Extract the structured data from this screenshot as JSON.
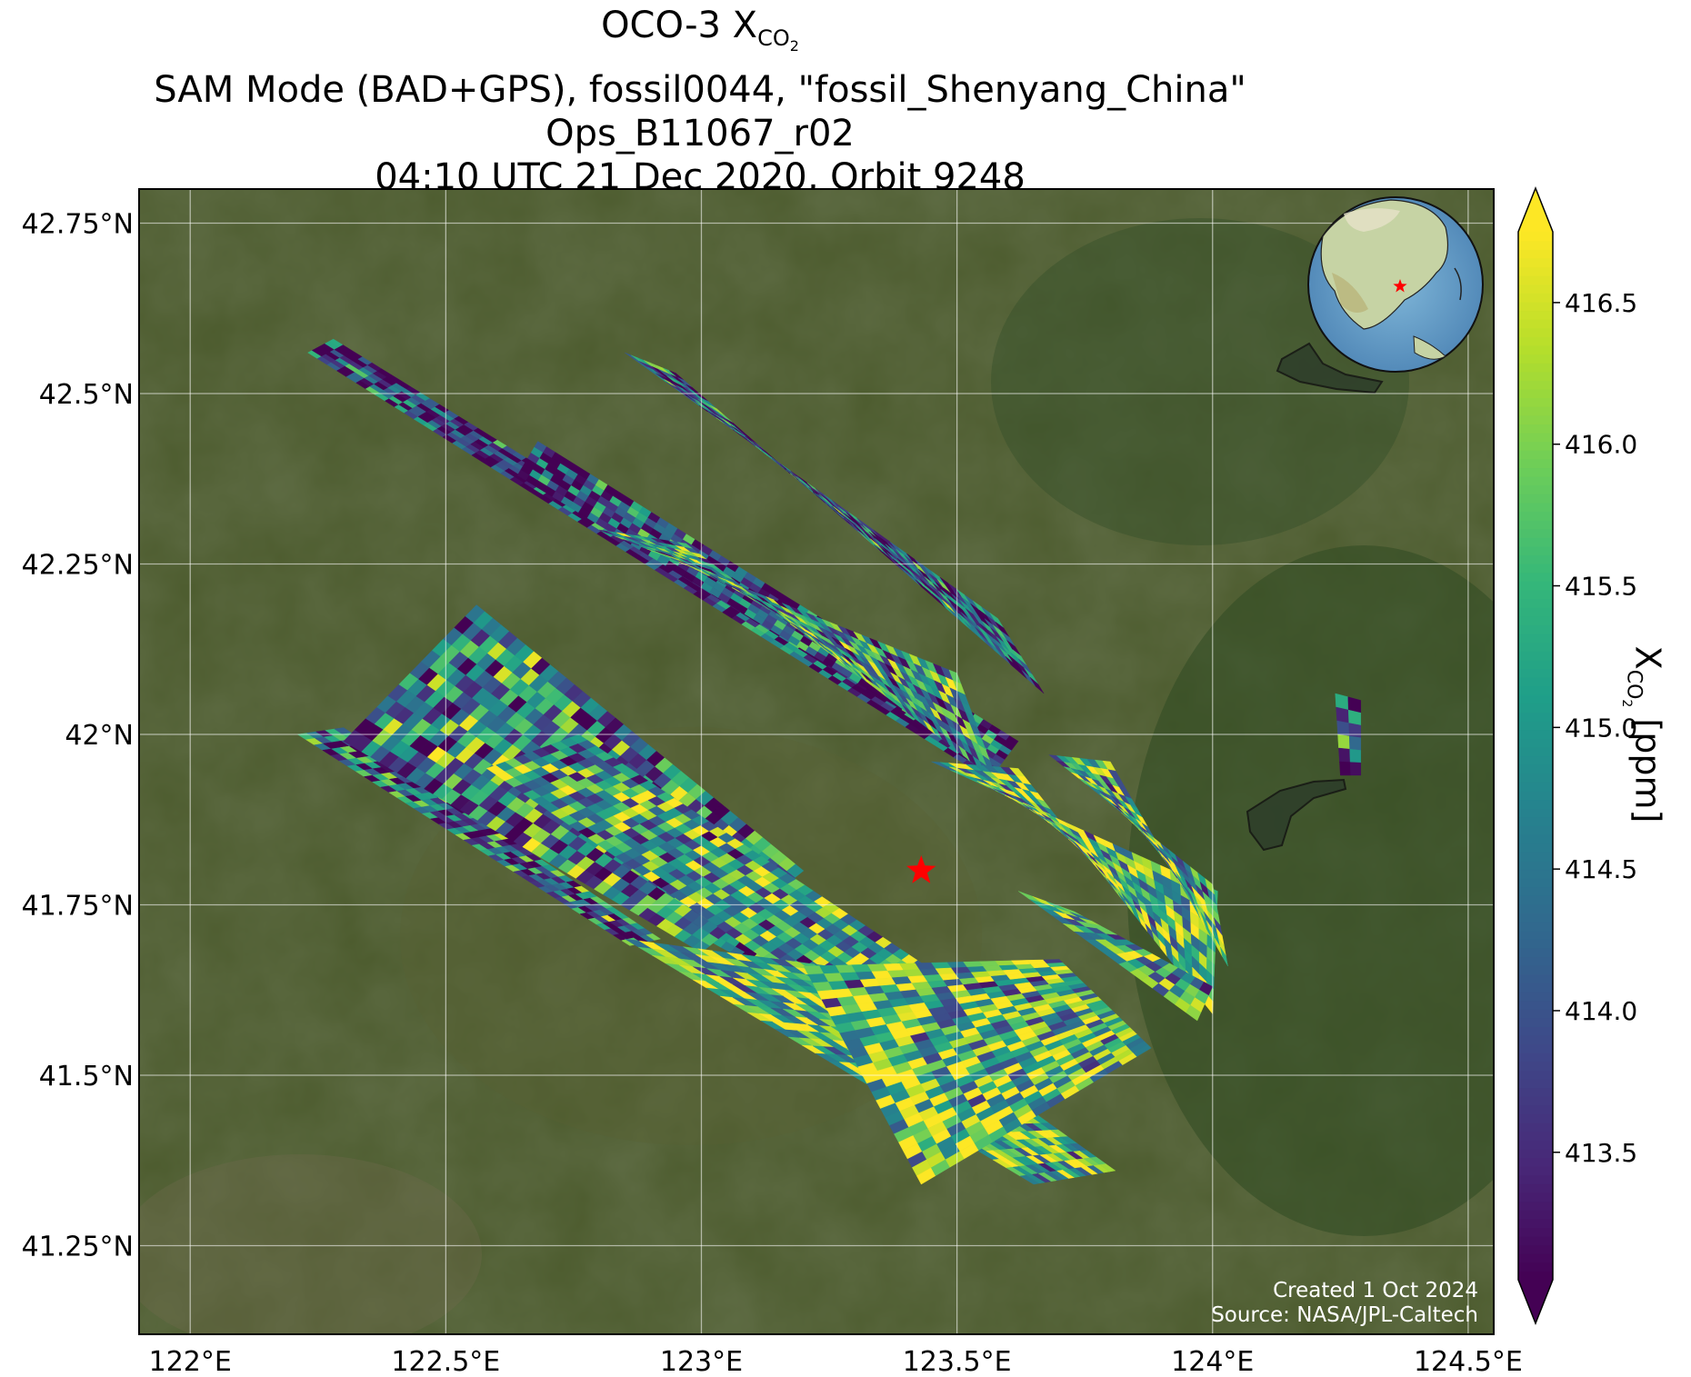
{
  "title": {
    "line1_main": "OCO-3 X",
    "line1_sub": "CO",
    "line1_subsub": "2",
    "line2": "SAM Mode (BAD+GPS), fossil0044, \"fossil_Shenyang_China\"",
    "line3": "Ops_B11067_r02",
    "line4": "04:10 UTC 21 Dec 2020, Orbit 9248"
  },
  "credits": {
    "created": "Created 1 Oct 2024",
    "source": "Source: NASA/JPL-Caltech"
  },
  "map": {
    "lon_range": [
      121.9,
      124.55
    ],
    "lat_range": [
      41.12,
      42.8
    ],
    "lon_ticks": [
      122.0,
      122.5,
      123.0,
      123.5,
      124.0,
      124.5
    ],
    "lon_tick_labels": [
      "122°E",
      "122.5°E",
      "123°E",
      "123.5°E",
      "124°E",
      "124.5°E"
    ],
    "lat_ticks": [
      41.25,
      41.5,
      41.75,
      42.0,
      42.25,
      42.5,
      42.75
    ],
    "lat_tick_labels": [
      "41.25°N",
      "41.5°N",
      "41.75°N",
      "42°N",
      "42.25°N",
      "42.5°N",
      "42.75°N"
    ],
    "gridlines": true,
    "background": "satellite imagery",
    "target_marker": {
      "name": "Shenyang",
      "lon": 123.43,
      "lat": 41.8,
      "color": "#ff0000",
      "icon": "star-icon"
    },
    "inset_globe": {
      "placement": "top-right",
      "marker_color": "#ff0000",
      "icon": "globe-icon"
    }
  },
  "colorbar": {
    "label_main": "X",
    "label_sub": "CO",
    "label_subsub": "2",
    "label_unit": " [ppm]",
    "range": [
      413.05,
      416.75
    ],
    "ticks": [
      413.5,
      414.0,
      414.5,
      415.0,
      415.5,
      416.0,
      416.5
    ],
    "tick_labels": [
      "413.5",
      "414.0",
      "414.5",
      "415.0",
      "415.5",
      "416.0",
      "416.5"
    ],
    "extend": "both",
    "colormap": "viridis",
    "colors": [
      "#440154",
      "#482878",
      "#3e4989",
      "#31688e",
      "#26828e",
      "#1f9e89",
      "#35b779",
      "#6ece58",
      "#b5de2b",
      "#fde725"
    ]
  },
  "chart_data": {
    "type": "heatmap",
    "variable": "XCO2",
    "units": "ppm",
    "swaths": [
      {
        "corners_lonlat": [
          [
            122.23,
            42.56
          ],
          [
            122.28,
            42.58
          ],
          [
            123.6,
            41.97
          ],
          [
            123.55,
            41.94
          ]
        ],
        "cols": 6,
        "rows": 70,
        "mean_ppm": 413.7
      },
      {
        "corners_lonlat": [
          [
            122.64,
            42.38
          ],
          [
            122.68,
            42.43
          ],
          [
            123.62,
            41.99
          ],
          [
            123.58,
            41.95
          ]
        ],
        "cols": 6,
        "rows": 55,
        "mean_ppm": 413.9
      },
      {
        "corners_lonlat": [
          [
            122.85,
            42.56
          ],
          [
            122.95,
            42.53
          ],
          [
            123.67,
            42.06
          ],
          [
            123.58,
            42.17
          ]
        ],
        "cols": 8,
        "rows": 45,
        "mean_ppm": 414.2
      },
      {
        "corners_lonlat": [
          [
            122.8,
            42.3
          ],
          [
            122.97,
            42.28
          ],
          [
            123.58,
            41.93
          ],
          [
            123.5,
            42.09
          ]
        ],
        "cols": 10,
        "rows": 45,
        "mean_ppm": 414.8
      },
      {
        "corners_lonlat": [
          [
            123.45,
            41.96
          ],
          [
            123.62,
            41.95
          ],
          [
            124.0,
            41.59
          ],
          [
            124.01,
            41.77
          ]
        ],
        "cols": 10,
        "rows": 30,
        "mean_ppm": 415.7
      },
      {
        "corners_lonlat": [
          [
            123.68,
            41.97
          ],
          [
            123.8,
            41.96
          ],
          [
            124.03,
            41.66
          ],
          [
            124.0,
            41.78
          ]
        ],
        "cols": 8,
        "rows": 22,
        "mean_ppm": 415.4
      },
      {
        "corners_lonlat": [
          [
            122.33,
            41.98
          ],
          [
            122.48,
            42.1
          ],
          [
            123.5,
            41.6
          ],
          [
            123.42,
            41.53
          ]
        ],
        "cols": 10,
        "rows": 60,
        "mean_ppm": 414.4
      },
      {
        "corners_lonlat": [
          [
            122.21,
            42.0
          ],
          [
            122.3,
            42.01
          ],
          [
            122.92,
            41.7
          ],
          [
            122.86,
            41.69
          ]
        ],
        "cols": 5,
        "rows": 40,
        "mean_ppm": 414.3
      },
      {
        "corners_lonlat": [
          [
            122.3,
            41.99
          ],
          [
            122.56,
            42.19
          ],
          [
            123.2,
            41.8
          ],
          [
            123.0,
            41.68
          ]
        ],
        "cols": 12,
        "rows": 40,
        "mean_ppm": 414.6
      },
      {
        "corners_lonlat": [
          [
            122.58,
            41.95
          ],
          [
            122.76,
            42.0
          ],
          [
            123.44,
            41.66
          ],
          [
            123.3,
            41.58
          ]
        ],
        "cols": 10,
        "rows": 40,
        "mean_ppm": 415.3
      },
      {
        "corners_lonlat": [
          [
            122.85,
            41.7
          ],
          [
            123.25,
            41.66
          ],
          [
            123.81,
            41.36
          ],
          [
            123.65,
            41.34
          ]
        ],
        "cols": 14,
        "rows": 30,
        "mean_ppm": 415.4
      },
      {
        "corners_lonlat": [
          [
            123.2,
            41.66
          ],
          [
            123.7,
            41.67
          ],
          [
            123.88,
            41.54
          ],
          [
            123.43,
            41.34
          ]
        ],
        "cols": 16,
        "rows": 26,
        "mean_ppm": 415.6
      },
      {
        "corners_lonlat": [
          [
            123.62,
            41.77
          ],
          [
            123.73,
            41.74
          ],
          [
            124.0,
            41.63
          ],
          [
            123.97,
            41.58
          ]
        ],
        "cols": 4,
        "rows": 16,
        "mean_ppm": 415.2
      },
      {
        "corners_lonlat": [
          [
            124.24,
            42.06
          ],
          [
            124.29,
            42.05
          ],
          [
            124.29,
            41.94
          ],
          [
            124.25,
            41.94
          ]
        ],
        "cols": 2,
        "rows": 6,
        "mean_ppm": 414.6
      }
    ]
  }
}
